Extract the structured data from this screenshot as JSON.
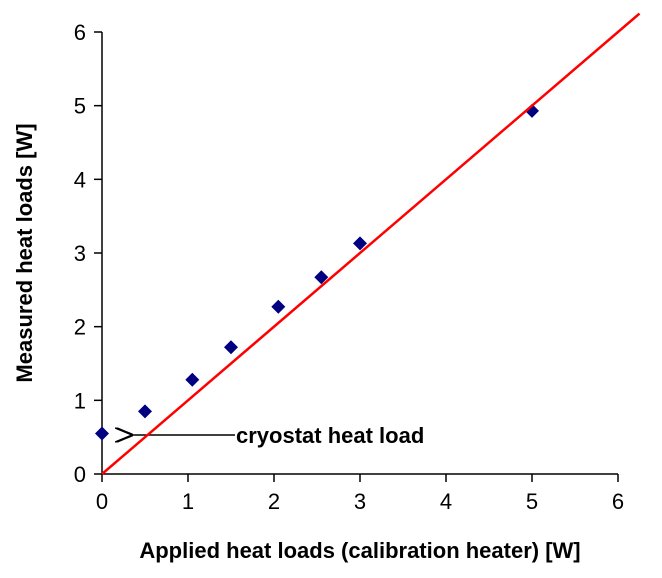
{
  "chart_data": {
    "type": "scatter",
    "xlabel": "Applied heat loads (calibration heater) [W]",
    "ylabel": "Measured heat loads [W]",
    "xlim": [
      0,
      6
    ],
    "ylim": [
      0,
      6
    ],
    "xticks": [
      0,
      1,
      2,
      3,
      4,
      5,
      6
    ],
    "yticks": [
      0,
      1,
      2,
      3,
      4,
      5,
      6
    ],
    "series": [
      {
        "type": "scatter",
        "color": "#000080",
        "x": [
          0,
          0.5,
          1.05,
          1.5,
          2.05,
          2.55,
          3,
          5
        ],
        "values": [
          0.55,
          0.85,
          1.28,
          1.72,
          2.27,
          2.67,
          3.13,
          4.93
        ]
      },
      {
        "type": "line",
        "color": "#ff0000",
        "x": [
          0,
          6.25
        ],
        "values": [
          0,
          6.25
        ]
      }
    ],
    "annotation": "cryostat heat load"
  }
}
